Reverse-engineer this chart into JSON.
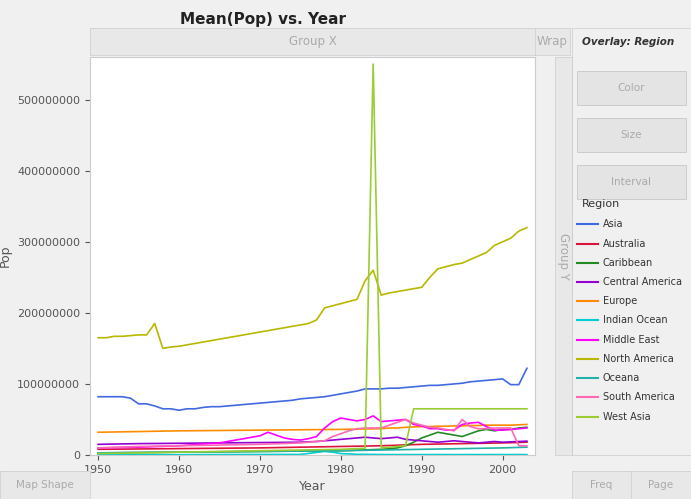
{
  "title": "Mean(Pop) vs. Year",
  "xlabel": "Year",
  "ylabel": "Pop",
  "group_x_label": "Group X",
  "wrap_label": "Wrap",
  "group_y_label": "Group Y",
  "overlay_label": "Overlay: Region",
  "region_label": "Region",
  "bg_color": "#f0f0f0",
  "plot_bg_color": "#ffffff",
  "regions": {
    "Asia": {
      "color": "#4169E1",
      "data": {
        "1950": 82000000,
        "1951": 82000000,
        "1952": 82000000,
        "1953": 82000000,
        "1954": 80000000,
        "1955": 72000000,
        "1956": 72000000,
        "1957": 69000000,
        "1958": 65000000,
        "1959": 65000000,
        "1960": 63000000,
        "1961": 65000000,
        "1962": 65000000,
        "1963": 67000000,
        "1964": 68000000,
        "1965": 68000000,
        "1966": 69000000,
        "1967": 70000000,
        "1968": 71000000,
        "1969": 72000000,
        "1970": 73000000,
        "1971": 74000000,
        "1972": 75000000,
        "1973": 76000000,
        "1974": 77000000,
        "1975": 79000000,
        "1976": 80000000,
        "1977": 81000000,
        "1978": 82000000,
        "1979": 84000000,
        "1980": 86000000,
        "1981": 88000000,
        "1982": 90000000,
        "1983": 93000000,
        "1984": 93000000,
        "1985": 93000000,
        "1986": 94000000,
        "1987": 94000000,
        "1988": 95000000,
        "1989": 96000000,
        "1990": 97000000,
        "1991": 98000000,
        "1992": 98000000,
        "1993": 99000000,
        "1994": 100000000,
        "1995": 101000000,
        "1996": 103000000,
        "1997": 104000000,
        "1998": 105000000,
        "1999": 106000000,
        "2000": 107000000,
        "2001": 99000000,
        "2002": 99000000,
        "2003": 122000000
      }
    },
    "Australia": {
      "color": "#DC143C",
      "data": {
        "1950": 8000000,
        "1955": 8500000,
        "1960": 9000000,
        "1965": 9500000,
        "1970": 10000000,
        "1975": 11000000,
        "1980": 12000000,
        "1985": 13000000,
        "1990": 15000000,
        "1995": 16000000,
        "2000": 17000000,
        "2003": 18000000
      }
    },
    "Caribbean": {
      "color": "#228B22",
      "data": {
        "1950": 3000000,
        "1955": 3500000,
        "1960": 4000000,
        "1965": 4500000,
        "1970": 5000000,
        "1975": 5500000,
        "1980": 6000000,
        "1985": 8000000,
        "1987": 10000000,
        "1988": 13000000,
        "1989": 18000000,
        "1990": 24000000,
        "1991": 28000000,
        "1992": 32000000,
        "1993": 30000000,
        "1994": 28000000,
        "1995": 26000000,
        "1996": 30000000,
        "1997": 34000000,
        "1998": 36000000,
        "1999": 34000000,
        "2000": 36000000,
        "2001": 36000000,
        "2002": 38000000,
        "2003": 39000000
      }
    },
    "Central America": {
      "color": "#9400D3",
      "data": {
        "1950": 15000000,
        "1955": 16000000,
        "1960": 16500000,
        "1965": 17000000,
        "1970": 17500000,
        "1975": 18000000,
        "1976": 18500000,
        "1977": 19000000,
        "1978": 20000000,
        "1979": 21000000,
        "1980": 22000000,
        "1981": 23000000,
        "1982": 24000000,
        "1983": 25000000,
        "1984": 24000000,
        "1985": 23000000,
        "1986": 24000000,
        "1987": 25000000,
        "1988": 22000000,
        "1989": 21000000,
        "1990": 20000000,
        "1991": 19000000,
        "1992": 18000000,
        "1993": 19000000,
        "1994": 20000000,
        "1995": 19000000,
        "1996": 18000000,
        "1997": 17000000,
        "1998": 18000000,
        "1999": 19000000,
        "2000": 18000000,
        "2001": 18500000,
        "2002": 19000000,
        "2003": 19500000
      }
    },
    "Europe": {
      "color": "#FF8C00",
      "data": {
        "1950": 32000000,
        "1955": 33000000,
        "1960": 34000000,
        "1965": 34500000,
        "1970": 35000000,
        "1975": 35500000,
        "1980": 36000000,
        "1985": 37000000,
        "1986": 38000000,
        "1987": 38000000,
        "1988": 39000000,
        "1989": 39500000,
        "1990": 40000000,
        "1991": 40000000,
        "1992": 40500000,
        "1993": 40500000,
        "1994": 41000000,
        "1995": 41000000,
        "1996": 41500000,
        "1997": 41500000,
        "1998": 42000000,
        "1999": 42000000,
        "2000": 42000000,
        "2001": 42000000,
        "2002": 42500000,
        "2003": 43000000
      }
    },
    "Indian Ocean": {
      "color": "#00CED1",
      "data": {
        "1950": 500000,
        "1955": 500000,
        "1960": 500000,
        "1965": 600000,
        "1970": 700000,
        "1975": 800000,
        "1978": 5000000,
        "1979": 4000000,
        "1980": 2000000,
        "1981": 1500000,
        "1982": 1000000,
        "1983": 900000,
        "1984": 800000,
        "1985": 700000,
        "1986": 600000,
        "1987": 600000,
        "1988": 600000,
        "1989": 600000,
        "1990": 600000,
        "1995": 600000,
        "2000": 600000,
        "2003": 600000
      }
    },
    "Middle East": {
      "color": "#FF00FF",
      "data": {
        "1950": 10000000,
        "1955": 11000000,
        "1960": 13000000,
        "1965": 17000000,
        "1970": 27000000,
        "1971": 32000000,
        "1972": 28000000,
        "1973": 24000000,
        "1974": 22000000,
        "1975": 21000000,
        "1976": 23000000,
        "1977": 26000000,
        "1978": 38000000,
        "1979": 47000000,
        "1980": 52000000,
        "1981": 50000000,
        "1982": 48000000,
        "1983": 50000000,
        "1984": 55000000,
        "1985": 47000000,
        "1986": 48000000,
        "1987": 49000000,
        "1988": 50000000,
        "1989": 43000000,
        "1990": 41000000,
        "1991": 37000000,
        "1992": 37000000,
        "1993": 35000000,
        "1994": 35000000,
        "1995": 43000000,
        "1996": 45000000,
        "1997": 46000000,
        "1998": 40000000,
        "1999": 35000000,
        "2000": 35000000,
        "2001": 36000000,
        "2002": 37000000,
        "2003": 38000000
      }
    },
    "North America": {
      "color": "#B8B800",
      "data": {
        "1950": 165000000,
        "1951": 165000000,
        "1952": 167000000,
        "1953": 167000000,
        "1954": 168000000,
        "1955": 169000000,
        "1956": 169000000,
        "1957": 185000000,
        "1958": 150000000,
        "1959": 152000000,
        "1960": 153000000,
        "1961": 155000000,
        "1962": 157000000,
        "1963": 159000000,
        "1964": 161000000,
        "1965": 163000000,
        "1966": 165000000,
        "1967": 167000000,
        "1968": 169000000,
        "1969": 171000000,
        "1970": 173000000,
        "1971": 175000000,
        "1972": 177000000,
        "1973": 179000000,
        "1974": 181000000,
        "1975": 183000000,
        "1976": 185000000,
        "1977": 190000000,
        "1978": 207000000,
        "1979": 210000000,
        "1980": 213000000,
        "1981": 216000000,
        "1982": 219000000,
        "1983": 245000000,
        "1984": 260000000,
        "1985": 225000000,
        "1986": 228000000,
        "1987": 230000000,
        "1988": 232000000,
        "1989": 234000000,
        "1990": 236000000,
        "1991": 250000000,
        "1992": 262000000,
        "1993": 265000000,
        "1994": 268000000,
        "1995": 270000000,
        "1996": 275000000,
        "1997": 280000000,
        "1998": 285000000,
        "1999": 295000000,
        "2000": 300000000,
        "2001": 305000000,
        "2002": 315000000,
        "2003": 320000000
      }
    },
    "Oceana": {
      "color": "#20B2AA",
      "data": {
        "1950": 3000000,
        "1955": 3500000,
        "1960": 4000000,
        "1965": 4500000,
        "1970": 5000000,
        "1975": 5500000,
        "1980": 6000000,
        "1985": 7000000,
        "1990": 8000000,
        "1995": 9000000,
        "2000": 10000000,
        "2003": 11000000
      }
    },
    "South America": {
      "color": "#FF69B4",
      "data": {
        "1950": 10000000,
        "1955": 12000000,
        "1960": 13000000,
        "1965": 14000000,
        "1970": 15000000,
        "1975": 17000000,
        "1976": 18000000,
        "1977": 19000000,
        "1978": 20000000,
        "1979": 26000000,
        "1980": 30000000,
        "1981": 34000000,
        "1982": 37000000,
        "1983": 38000000,
        "1984": 38000000,
        "1985": 38000000,
        "1986": 42000000,
        "1987": 46000000,
        "1988": 50000000,
        "1989": 45000000,
        "1990": 42000000,
        "1991": 39000000,
        "1992": 38000000,
        "1993": 36000000,
        "1994": 34000000,
        "1995": 50000000,
        "1996": 40000000,
        "1997": 37000000,
        "1998": 37000000,
        "1999": 38000000,
        "2000": 38000000,
        "2001": 38000000,
        "2002": 13000000,
        "2003": 13000000
      }
    },
    "West Asia": {
      "color": "#9ACD32",
      "data": {
        "1950": 2000000,
        "1955": 3000000,
        "1960": 4000000,
        "1965": 5000000,
        "1970": 6000000,
        "1975": 7000000,
        "1980": 8000000,
        "1981": 8500000,
        "1982": 9000000,
        "1983": 9500000,
        "1984": 550000000,
        "1985": 10000000,
        "1986": 11000000,
        "1987": 12000000,
        "1988": 13000000,
        "1989": 65000000,
        "1990": 65000000,
        "1991": 65000000,
        "1992": 65000000,
        "1993": 65000000,
        "1994": 65000000,
        "1995": 65000000,
        "1996": 65000000,
        "1997": 65000000,
        "1998": 65000000,
        "1999": 65000000,
        "2000": 65000000,
        "2001": 65000000,
        "2002": 65000000,
        "2003": 65000000
      }
    }
  },
  "ylim": [
    0,
    560000000
  ],
  "xlim": [
    1949,
    2004
  ],
  "yticks": [
    0,
    100000000,
    200000000,
    300000000,
    400000000,
    500000000
  ],
  "xticks": [
    1950,
    1960,
    1970,
    1980,
    1990,
    2000
  ],
  "legend_regions": [
    [
      "Asia",
      "#4169E1"
    ],
    [
      "Australia",
      "#DC143C"
    ],
    [
      "Caribbean",
      "#228B22"
    ],
    [
      "Central America",
      "#9400D3"
    ],
    [
      "Europe",
      "#FF8C00"
    ],
    [
      "Indian Ocean",
      "#00CED1"
    ],
    [
      "Middle East",
      "#FF00FF"
    ],
    [
      "North America",
      "#B8B800"
    ],
    [
      "Oceana",
      "#20B2AA"
    ],
    [
      "South America",
      "#FF69B4"
    ],
    [
      "West Asia",
      "#9ACD32"
    ]
  ]
}
